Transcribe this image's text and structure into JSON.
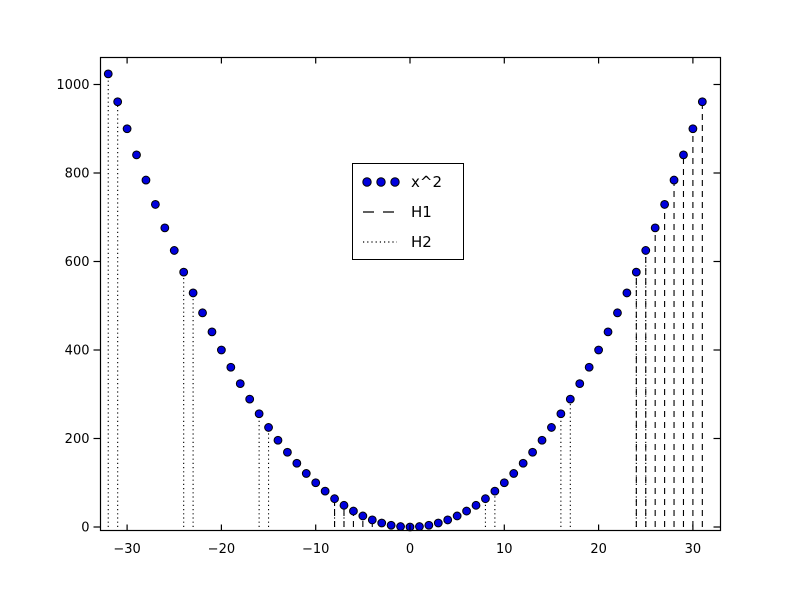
{
  "chart_data": {
    "type": "scatter",
    "title": "",
    "xlabel": "",
    "ylabel": "",
    "xlim": [
      -33,
      33
    ],
    "ylim": [
      -10,
      1060
    ],
    "grid": false,
    "x_ticks": [
      -30,
      -20,
      -10,
      0,
      10,
      20,
      30
    ],
    "x_tick_labels": [
      "−30",
      "−20",
      "−10",
      "0",
      "10",
      "20",
      "30"
    ],
    "y_ticks": [
      0,
      200,
      400,
      600,
      800,
      1000
    ],
    "y_tick_labels": [
      "0",
      "200",
      "400",
      "600",
      "800",
      "1000"
    ],
    "series": [
      {
        "name": "x^2",
        "type": "scatter",
        "marker": "circle",
        "color": "#0000dd",
        "edge_color": "#000000",
        "x": [
          -32,
          -31,
          -30,
          -29,
          -28,
          -27,
          -26,
          -25,
          -24,
          -23,
          -22,
          -21,
          -20,
          -19,
          -18,
          -17,
          -16,
          -15,
          -14,
          -13,
          -12,
          -11,
          -10,
          -9,
          -8,
          -7,
          -6,
          -5,
          -4,
          -3,
          -2,
          -1,
          0,
          1,
          2,
          3,
          4,
          5,
          6,
          7,
          8,
          9,
          10,
          11,
          12,
          13,
          14,
          15,
          16,
          17,
          18,
          19,
          20,
          21,
          22,
          23,
          24,
          25,
          26,
          27,
          28,
          29,
          30,
          31
        ],
        "y": [
          1024,
          961,
          900,
          841,
          784,
          729,
          676,
          625,
          576,
          529,
          484,
          441,
          400,
          361,
          324,
          289,
          256,
          225,
          196,
          169,
          144,
          121,
          100,
          81,
          64,
          49,
          36,
          25,
          16,
          9,
          4,
          1,
          0,
          1,
          4,
          9,
          16,
          25,
          36,
          49,
          64,
          81,
          100,
          121,
          144,
          169,
          196,
          225,
          256,
          289,
          324,
          361,
          400,
          441,
          484,
          529,
          576,
          625,
          676,
          729,
          784,
          841,
          900,
          961
        ]
      },
      {
        "name": "H1",
        "type": "vlines",
        "style": "dashed",
        "color": "#000000",
        "ymin": 0,
        "x": [
          -8,
          -7,
          -6,
          -5,
          -4,
          24,
          25,
          26,
          27,
          28,
          29,
          30,
          31
        ],
        "y": [
          64,
          49,
          36,
          25,
          16,
          576,
          625,
          676,
          729,
          784,
          841,
          900,
          961
        ]
      },
      {
        "name": "H2",
        "type": "vlines",
        "style": "dotted",
        "color": "#000000",
        "ymin": 0,
        "x": [
          -32,
          -31,
          -24,
          -23,
          -16,
          -15,
          -8,
          -7,
          8,
          9,
          16,
          17,
          24,
          25
        ],
        "y": [
          1024,
          961,
          576,
          529,
          256,
          225,
          64,
          49,
          64,
          81,
          256,
          289,
          576,
          625
        ]
      }
    ],
    "legend": {
      "position": "upper center",
      "entries": [
        {
          "label": "x^2",
          "style": "dots"
        },
        {
          "label": "H1",
          "style": "dashed"
        },
        {
          "label": "H2",
          "style": "dotted"
        }
      ]
    }
  }
}
